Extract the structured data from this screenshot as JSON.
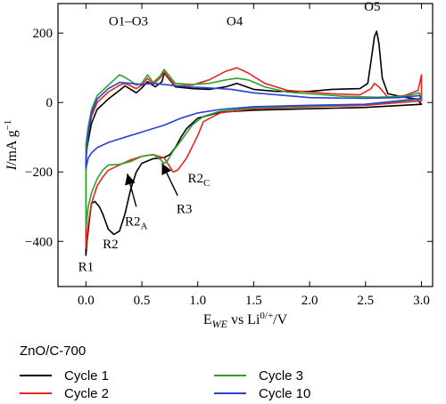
{
  "chart_data": {
    "type": "line",
    "title": "",
    "xlabel": {
      "main": "E",
      "sub": "WE",
      "rest": " vs Li",
      "sup": "0/+",
      "unit": "/V"
    },
    "ylabel": {
      "main": "I",
      "rest": "/mA g",
      "sup": "−1"
    },
    "xlim": [
      -0.25,
      3.1
    ],
    "ylim": [
      -530,
      285
    ],
    "xticks": [
      0.0,
      0.5,
      1.0,
      1.5,
      2.0,
      2.5,
      3.0
    ],
    "xtick_labels": [
      "0.0",
      "0.5",
      "1.0",
      "1.5",
      "2.0",
      "2.5",
      "3.0"
    ],
    "yticks": [
      200,
      0,
      -200,
      -400
    ],
    "ytick_labels": [
      "200",
      "0",
      "−200",
      "−400"
    ],
    "legend": {
      "title": "ZnO/C-700",
      "placement": "below"
    },
    "series": [
      {
        "name": "Cycle 1",
        "color": "#000000",
        "points": [
          [
            0.0,
            -440
          ],
          [
            0.01,
            -400
          ],
          [
            0.03,
            -340
          ],
          [
            0.05,
            -290
          ],
          [
            0.08,
            -285
          ],
          [
            0.12,
            -300
          ],
          [
            0.15,
            -320
          ],
          [
            0.2,
            -365
          ],
          [
            0.25,
            -380
          ],
          [
            0.3,
            -370
          ],
          [
            0.35,
            -320
          ],
          [
            0.4,
            -250
          ],
          [
            0.45,
            -200
          ],
          [
            0.5,
            -175
          ],
          [
            0.6,
            -162
          ],
          [
            0.7,
            -158
          ],
          [
            0.75,
            -150
          ],
          [
            0.8,
            -130
          ],
          [
            0.85,
            -100
          ],
          [
            0.9,
            -75
          ],
          [
            1.0,
            -45
          ],
          [
            1.2,
            -28
          ],
          [
            1.5,
            -22
          ],
          [
            2.0,
            -18
          ],
          [
            2.5,
            -14
          ],
          [
            3.0,
            -5
          ],
          [
            2.96,
            10
          ],
          [
            2.85,
            15
          ],
          [
            2.7,
            25
          ],
          [
            2.65,
            70
          ],
          [
            2.62,
            170
          ],
          [
            2.6,
            205
          ],
          [
            2.58,
            190
          ],
          [
            2.55,
            120
          ],
          [
            2.52,
            55
          ],
          [
            2.45,
            40
          ],
          [
            2.2,
            38
          ],
          [
            2.0,
            32
          ],
          [
            1.7,
            32
          ],
          [
            1.5,
            38
          ],
          [
            1.35,
            55
          ],
          [
            1.25,
            45
          ],
          [
            1.1,
            38
          ],
          [
            0.95,
            40
          ],
          [
            0.8,
            45
          ],
          [
            0.7,
            85
          ],
          [
            0.68,
            60
          ],
          [
            0.62,
            45
          ],
          [
            0.55,
            60
          ],
          [
            0.5,
            42
          ],
          [
            0.45,
            28
          ],
          [
            0.4,
            38
          ],
          [
            0.35,
            48
          ],
          [
            0.3,
            35
          ],
          [
            0.2,
            10
          ],
          [
            0.1,
            -20
          ],
          [
            0.05,
            -60
          ],
          [
            0.02,
            -110
          ],
          [
            0.0,
            -150
          ]
        ]
      },
      {
        "name": "Cycle 2",
        "color": "#e8261f",
        "points": [
          [
            0.0,
            -420
          ],
          [
            0.02,
            -350
          ],
          [
            0.05,
            -290
          ],
          [
            0.1,
            -240
          ],
          [
            0.15,
            -215
          ],
          [
            0.2,
            -195
          ],
          [
            0.3,
            -180
          ],
          [
            0.4,
            -165
          ],
          [
            0.5,
            -155
          ],
          [
            0.6,
            -150
          ],
          [
            0.7,
            -160
          ],
          [
            0.75,
            -185
          ],
          [
            0.78,
            -200
          ],
          [
            0.82,
            -195
          ],
          [
            0.9,
            -160
          ],
          [
            1.0,
            -95
          ],
          [
            1.05,
            -55
          ],
          [
            1.2,
            -30
          ],
          [
            1.5,
            -18
          ],
          [
            2.0,
            -12
          ],
          [
            2.5,
            -8
          ],
          [
            3.0,
            5
          ],
          [
            3.0,
            80
          ],
          [
            2.97,
            35
          ],
          [
            2.85,
            20
          ],
          [
            2.7,
            15
          ],
          [
            2.62,
            45
          ],
          [
            2.58,
            55
          ],
          [
            2.55,
            40
          ],
          [
            2.45,
            22
          ],
          [
            2.2,
            25
          ],
          [
            1.8,
            35
          ],
          [
            1.6,
            55
          ],
          [
            1.45,
            85
          ],
          [
            1.35,
            100
          ],
          [
            1.25,
            90
          ],
          [
            1.1,
            65
          ],
          [
            0.95,
            50
          ],
          [
            0.8,
            48
          ],
          [
            0.7,
            88
          ],
          [
            0.66,
            70
          ],
          [
            0.6,
            52
          ],
          [
            0.55,
            70
          ],
          [
            0.5,
            50
          ],
          [
            0.45,
            40
          ],
          [
            0.4,
            48
          ],
          [
            0.35,
            55
          ],
          [
            0.3,
            50
          ],
          [
            0.2,
            30
          ],
          [
            0.1,
            0
          ],
          [
            0.05,
            -40
          ],
          [
            0.02,
            -90
          ],
          [
            0.0,
            -140
          ]
        ]
      },
      {
        "name": "Cycle 3",
        "color": "#2fa030",
        "points": [
          [
            0.0,
            -360
          ],
          [
            0.02,
            -300
          ],
          [
            0.05,
            -260
          ],
          [
            0.1,
            -220
          ],
          [
            0.15,
            -195
          ],
          [
            0.2,
            -180
          ],
          [
            0.3,
            -178
          ],
          [
            0.4,
            -170
          ],
          [
            0.5,
            -155
          ],
          [
            0.6,
            -150
          ],
          [
            0.65,
            -160
          ],
          [
            0.7,
            -175
          ],
          [
            0.72,
            -172
          ],
          [
            0.78,
            -140
          ],
          [
            0.85,
            -110
          ],
          [
            0.95,
            -65
          ],
          [
            1.05,
            -40
          ],
          [
            1.2,
            -25
          ],
          [
            1.5,
            -15
          ],
          [
            2.0,
            -10
          ],
          [
            2.5,
            -5
          ],
          [
            3.0,
            10
          ],
          [
            2.98,
            28
          ],
          [
            2.85,
            18
          ],
          [
            2.6,
            15
          ],
          [
            2.3,
            18
          ],
          [
            1.8,
            30
          ],
          [
            1.6,
            45
          ],
          [
            1.45,
            65
          ],
          [
            1.35,
            70
          ],
          [
            1.25,
            65
          ],
          [
            1.1,
            55
          ],
          [
            0.95,
            52
          ],
          [
            0.8,
            55
          ],
          [
            0.7,
            95
          ],
          [
            0.66,
            75
          ],
          [
            0.6,
            58
          ],
          [
            0.55,
            80
          ],
          [
            0.5,
            55
          ],
          [
            0.45,
            50
          ],
          [
            0.4,
            62
          ],
          [
            0.35,
            72
          ],
          [
            0.3,
            80
          ],
          [
            0.2,
            50
          ],
          [
            0.1,
            20
          ],
          [
            0.05,
            -20
          ],
          [
            0.02,
            -70
          ],
          [
            0.0,
            -120
          ]
        ]
      },
      {
        "name": "Cycle 10",
        "color": "#2a3fd6",
        "points": [
          [
            0.0,
            -190
          ],
          [
            0.02,
            -160
          ],
          [
            0.05,
            -145
          ],
          [
            0.1,
            -130
          ],
          [
            0.2,
            -115
          ],
          [
            0.35,
            -100
          ],
          [
            0.5,
            -85
          ],
          [
            0.7,
            -65
          ],
          [
            0.85,
            -45
          ],
          [
            1.0,
            -30
          ],
          [
            1.2,
            -20
          ],
          [
            1.5,
            -12
          ],
          [
            2.0,
            -8
          ],
          [
            2.5,
            -5
          ],
          [
            3.0,
            12
          ],
          [
            2.98,
            20
          ],
          [
            2.8,
            14
          ],
          [
            2.5,
            12
          ],
          [
            2.0,
            14
          ],
          [
            1.5,
            28
          ],
          [
            1.3,
            38
          ],
          [
            1.1,
            42
          ],
          [
            0.9,
            45
          ],
          [
            0.7,
            52
          ],
          [
            0.6,
            55
          ],
          [
            0.5,
            52
          ],
          [
            0.4,
            55
          ],
          [
            0.3,
            58
          ],
          [
            0.2,
            40
          ],
          [
            0.1,
            10
          ],
          [
            0.05,
            -30
          ],
          [
            0.02,
            -90
          ],
          [
            0.0,
            -170
          ]
        ]
      }
    ],
    "annotations": [
      {
        "text": "O1–O3",
        "x": 0.38,
        "y": 222
      },
      {
        "text": "O4",
        "x": 1.33,
        "y": 222
      },
      {
        "text": "O5",
        "x": 2.56,
        "y": 265
      },
      {
        "text": "R1",
        "x": 0.0,
        "y": -485
      },
      {
        "text": "R2",
        "x": 0.22,
        "y": -420
      },
      {
        "text": "R2",
        "sub": "A",
        "x": 0.45,
        "y": -355
      },
      {
        "text": "R3",
        "x": 0.88,
        "y": -318
      },
      {
        "text": "R2",
        "sub": "C",
        "x": 1.01,
        "y": -230
      }
    ],
    "arrows": [
      {
        "from": [
          0.45,
          -300
        ],
        "to": [
          0.37,
          -205
        ]
      },
      {
        "from": [
          0.82,
          -268
        ],
        "to": [
          0.68,
          -175
        ]
      }
    ]
  }
}
